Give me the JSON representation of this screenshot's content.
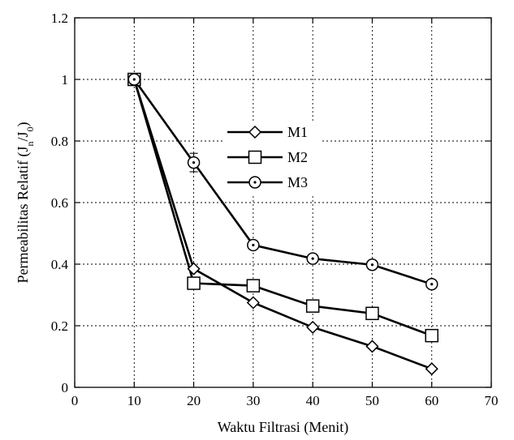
{
  "chart_data": {
    "type": "line",
    "xlabel": "Waktu Filtrasi (Menit)",
    "ylabel": {
      "main": "Permeabilitas Relatif (J",
      "sub_n": "n",
      "mid": "/J",
      "sub_0": "0",
      "end": ")"
    },
    "xlim": [
      0,
      70
    ],
    "ylim": [
      0,
      1.2
    ],
    "xticks": [
      0,
      10,
      20,
      30,
      40,
      50,
      60,
      70
    ],
    "xtick_labels": [
      "0",
      "10",
      "20",
      "30",
      "40",
      "50",
      "60",
      "70"
    ],
    "yticks": [
      0,
      0.2,
      0.4,
      0.6,
      0.8,
      1,
      1.2
    ],
    "ytick_labels": [
      "0",
      "0.2",
      "0.4",
      "0.6",
      "0.8",
      "1",
      "1.2"
    ],
    "grid": true,
    "legend_position": "center",
    "series": [
      {
        "name": "M1",
        "marker": "diamond",
        "x": [
          10,
          20,
          30,
          40,
          50,
          60
        ],
        "y": [
          1.0,
          0.385,
          0.275,
          0.195,
          0.133,
          0.06
        ]
      },
      {
        "name": "M2",
        "marker": "square",
        "x": [
          10,
          20,
          30,
          40,
          50,
          60
        ],
        "y": [
          1.0,
          0.338,
          0.33,
          0.264,
          0.24,
          0.168
        ]
      },
      {
        "name": "M3",
        "marker": "circle-dot",
        "x": [
          10,
          20,
          30,
          40,
          50,
          60
        ],
        "y": [
          1.0,
          0.73,
          0.462,
          0.418,
          0.398,
          0.335
        ],
        "error": [
          0,
          0.03,
          0.012,
          0,
          0,
          0.012
        ]
      }
    ]
  }
}
